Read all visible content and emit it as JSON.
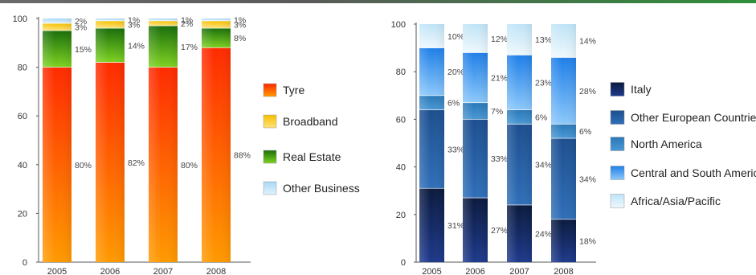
{
  "chart_data": [
    {
      "type": "bar",
      "stacked": true,
      "categories": [
        "2005",
        "2006",
        "2007",
        "2008"
      ],
      "ylim": [
        0,
        100
      ],
      "yticks": [
        0,
        20,
        40,
        60,
        80,
        100
      ],
      "series": [
        {
          "name": "Tyre",
          "values": [
            80,
            82,
            80,
            88
          ],
          "labels": [
            "80%",
            "82%",
            "80%",
            "88%"
          ],
          "color_top": "#ff2a00",
          "color_bottom": "#ff9a00"
        },
        {
          "name": "Real Estate",
          "values": [
            15,
            14,
            17,
            8
          ],
          "labels": [
            "15%",
            "14%",
            "17%",
            "8%"
          ],
          "color_top": "#1a6e0a",
          "color_bottom": "#7ed321"
        },
        {
          "name": "Broadband",
          "values": [
            3,
            3,
            2,
            3
          ],
          "labels": [
            "3%",
            "3%",
            "2%",
            "3%"
          ],
          "color_top": "#f5c000",
          "color_bottom": "#ffe27a"
        },
        {
          "name": "Other Business",
          "values": [
            2,
            1,
            1,
            1
          ],
          "labels": [
            "2%",
            "1%",
            "1%",
            "1%"
          ],
          "color_top": "#a9d8f5",
          "color_bottom": "#dff2fd"
        }
      ],
      "legend_order": [
        "Tyre",
        "Broadband",
        "Real Estate",
        "Other Business"
      ],
      "legend_position": "right"
    },
    {
      "type": "bar",
      "stacked": true,
      "categories": [
        "2005",
        "2006",
        "2007",
        "2008"
      ],
      "ylim": [
        0,
        100
      ],
      "yticks": [
        0,
        20,
        40,
        60,
        80,
        100
      ],
      "series": [
        {
          "name": "Italy",
          "values": [
            31,
            27,
            24,
            18
          ],
          "labels": [
            "31%",
            "27%",
            "24%",
            "18%"
          ],
          "color_top": "#0a1a3e",
          "color_bottom": "#1e3a8c"
        },
        {
          "name": "Other European Countries",
          "values": [
            33,
            33,
            34,
            34
          ],
          "labels": [
            "33%",
            "33%",
            "34%",
            "34%"
          ],
          "color_top": "#1d4f8f",
          "color_bottom": "#2f6fb8"
        },
        {
          "name": "North America",
          "values": [
            6,
            7,
            6,
            6
          ],
          "labels": [
            "6%",
            "7%",
            "6%",
            "6%"
          ],
          "color_top": "#2a78b8",
          "color_bottom": "#4a98d4"
        },
        {
          "name": "Central and South America",
          "values": [
            20,
            21,
            23,
            28
          ],
          "labels": [
            "20%",
            "21%",
            "23%",
            "28%"
          ],
          "color_top": "#1f7fe8",
          "color_bottom": "#8cc8fa"
        },
        {
          "name": "Africa/Asia/Pacific",
          "values": [
            10,
            12,
            13,
            14
          ],
          "labels": [
            "10%",
            "12%",
            "13%",
            "14%"
          ],
          "color_top": "#bfe4f7",
          "color_bottom": "#eef8fd"
        }
      ],
      "legend_order": [
        "Italy",
        "Other European Countries",
        "North America",
        "Central and South America",
        "Africa/Asia/Pacific"
      ],
      "legend_position": "right"
    }
  ]
}
